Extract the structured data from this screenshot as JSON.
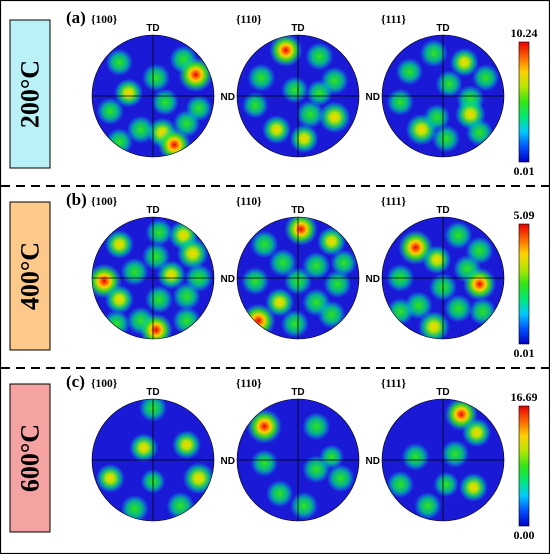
{
  "rows": [
    {
      "panel_label": "(a)",
      "temperature": "200°C",
      "temp_color": "#b9f1f6",
      "scale_max": "10.24",
      "scale_min": "0.01",
      "poles": [
        {
          "family": "{100}",
          "td": "TD",
          "nd": "",
          "spots": [
            [
              -0.55,
              -0.55,
              0.5
            ],
            [
              0.5,
              -0.6,
              0.55
            ],
            [
              0.7,
              -0.35,
              0.95
            ],
            [
              0.05,
              -0.3,
              0.55
            ],
            [
              -0.4,
              -0.05,
              0.6
            ],
            [
              -0.7,
              0.25,
              0.5
            ],
            [
              0.2,
              0.1,
              0.5
            ],
            [
              -0.2,
              0.55,
              0.55
            ],
            [
              0.15,
              0.6,
              0.65
            ],
            [
              0.35,
              0.8,
              0.85
            ],
            [
              0.55,
              0.45,
              0.5
            ],
            [
              -0.55,
              0.75,
              0.5
            ],
            [
              0.75,
              0.2,
              0.45
            ]
          ]
        },
        {
          "family": "{110}",
          "td": "TD",
          "nd": "ND",
          "spots": [
            [
              -0.2,
              -0.75,
              0.85
            ],
            [
              0.35,
              -0.65,
              0.55
            ],
            [
              0.6,
              -0.25,
              0.55
            ],
            [
              -0.6,
              -0.3,
              0.55
            ],
            [
              -0.05,
              -0.1,
              0.5
            ],
            [
              0.2,
              0.3,
              0.55
            ],
            [
              0.6,
              0.35,
              0.75
            ],
            [
              -0.35,
              0.55,
              0.6
            ],
            [
              0.1,
              0.7,
              0.6
            ],
            [
              -0.7,
              0.15,
              0.45
            ],
            [
              0.35,
              -0.05,
              0.45
            ]
          ]
        },
        {
          "family": "{111}",
          "td": "TD",
          "nd": "ND",
          "spots": [
            [
              -0.15,
              -0.7,
              0.55
            ],
            [
              0.35,
              -0.55,
              0.6
            ],
            [
              0.7,
              -0.3,
              0.5
            ],
            [
              -0.55,
              -0.4,
              0.5
            ],
            [
              0.1,
              -0.2,
              0.5
            ],
            [
              -0.7,
              0.1,
              0.5
            ],
            [
              0.45,
              0.05,
              0.55
            ],
            [
              0.45,
              0.3,
              0.7
            ],
            [
              -0.35,
              0.55,
              0.75
            ],
            [
              0.05,
              0.7,
              0.55
            ],
            [
              0.6,
              0.6,
              0.5
            ],
            [
              -0.1,
              0.35,
              0.45
            ]
          ]
        }
      ]
    },
    {
      "panel_label": "(b)",
      "temperature": "400°C",
      "temp_color": "#fcc98b",
      "scale_max": "5.09",
      "scale_min": "0.01",
      "poles": [
        {
          "family": "{100}",
          "td": "TD",
          "nd": "",
          "spots": [
            [
              -0.8,
              0.05,
              0.95
            ],
            [
              -0.55,
              -0.55,
              0.6
            ],
            [
              0.5,
              -0.7,
              0.65
            ],
            [
              0.65,
              -0.4,
              0.75
            ],
            [
              0.05,
              -0.35,
              0.55
            ],
            [
              -0.3,
              -0.1,
              0.55
            ],
            [
              0.3,
              -0.05,
              0.6
            ],
            [
              0.75,
              0.0,
              0.55
            ],
            [
              -0.55,
              0.35,
              0.6
            ],
            [
              0.1,
              0.35,
              0.55
            ],
            [
              0.55,
              0.3,
              0.55
            ],
            [
              -0.2,
              0.7,
              0.55
            ],
            [
              0.05,
              0.85,
              0.85
            ],
            [
              0.55,
              0.7,
              0.55
            ],
            [
              -0.6,
              0.75,
              0.5
            ],
            [
              0.1,
              -0.75,
              0.5
            ]
          ]
        },
        {
          "family": "{110}",
          "td": "TD",
          "nd": "ND",
          "spots": [
            [
              0.05,
              -0.8,
              0.85
            ],
            [
              -0.55,
              -0.55,
              0.55
            ],
            [
              0.55,
              -0.6,
              0.6
            ],
            [
              -0.25,
              -0.25,
              0.55
            ],
            [
              0.3,
              -0.2,
              0.55
            ],
            [
              -0.7,
              0.05,
              0.55
            ],
            [
              0.0,
              0.05,
              0.55
            ],
            [
              0.65,
              0.1,
              0.55
            ],
            [
              -0.3,
              0.4,
              0.6
            ],
            [
              0.3,
              0.4,
              0.55
            ],
            [
              -0.05,
              0.75,
              0.55
            ],
            [
              0.55,
              0.6,
              0.55
            ],
            [
              -0.65,
              0.7,
              0.9
            ],
            [
              0.75,
              -0.25,
              0.45
            ]
          ]
        },
        {
          "family": "{111}",
          "td": "TD",
          "nd": "ND",
          "spots": [
            [
              -0.45,
              -0.5,
              0.95
            ],
            [
              0.25,
              -0.7,
              0.55
            ],
            [
              0.6,
              -0.45,
              0.55
            ],
            [
              -0.1,
              -0.3,
              0.6
            ],
            [
              0.4,
              -0.15,
              0.55
            ],
            [
              -0.7,
              0.0,
              0.55
            ],
            [
              0.6,
              0.1,
              0.85
            ],
            [
              0.0,
              0.15,
              0.55
            ],
            [
              -0.4,
              0.45,
              0.55
            ],
            [
              0.25,
              0.5,
              0.55
            ],
            [
              -0.15,
              0.8,
              0.75
            ],
            [
              0.65,
              0.55,
              0.5
            ],
            [
              -0.7,
              0.55,
              0.5
            ]
          ]
        }
      ]
    },
    {
      "panel_label": "(c)",
      "temperature": "600°C",
      "temp_color": "#f4a2a2",
      "scale_max": "16.69",
      "scale_min": "0.00",
      "poles": [
        {
          "family": "{100}",
          "td": "TD",
          "nd": "",
          "spots": [
            [
              0.0,
              -0.85,
              0.55
            ],
            [
              -0.15,
              -0.2,
              0.6
            ],
            [
              0.55,
              -0.25,
              0.6
            ],
            [
              -0.7,
              0.3,
              0.6
            ],
            [
              0.75,
              0.3,
              0.75
            ],
            [
              -0.3,
              0.8,
              0.55
            ],
            [
              0.45,
              0.75,
              0.55
            ],
            [
              0.0,
              0.35,
              0.35
            ]
          ]
        },
        {
          "family": "{110}",
          "td": "TD",
          "nd": "ND",
          "spots": [
            [
              -0.55,
              -0.55,
              0.95
            ],
            [
              0.3,
              -0.55,
              0.55
            ],
            [
              -0.55,
              0.05,
              0.5
            ],
            [
              0.3,
              0.15,
              0.55
            ],
            [
              0.7,
              0.3,
              0.55
            ],
            [
              -0.3,
              0.55,
              0.5
            ],
            [
              0.1,
              0.75,
              0.55
            ],
            [
              0.55,
              -0.05,
              0.35
            ]
          ]
        },
        {
          "family": "{111}",
          "td": "TD",
          "nd": "ND",
          "spots": [
            [
              0.3,
              -0.75,
              0.85
            ],
            [
              0.55,
              -0.45,
              0.6
            ],
            [
              -0.45,
              -0.05,
              0.55
            ],
            [
              0.2,
              -0.1,
              0.55
            ],
            [
              -0.7,
              0.4,
              0.5
            ],
            [
              0.5,
              0.45,
              0.6
            ],
            [
              -0.25,
              0.75,
              0.5
            ],
            [
              0.05,
              0.4,
              0.4
            ]
          ]
        }
      ]
    }
  ],
  "colors": {
    "disk_bg": "#1a1ad6",
    "frame": "#000000",
    "divider": "#000000"
  },
  "colormap": [
    "#0000c8",
    "#0050ff",
    "#00c8ff",
    "#00e878",
    "#32e614",
    "#b4e600",
    "#ffd200",
    "#ff6400",
    "#e60000"
  ]
}
